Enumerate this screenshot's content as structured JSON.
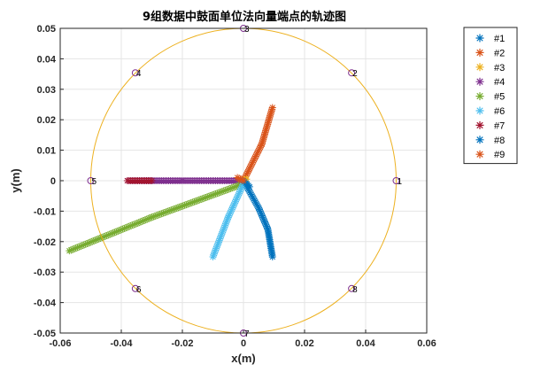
{
  "chart_data": {
    "type": "scatter",
    "title": "9组数据中鼓面单位法向量端点的轨迹图",
    "xlabel": "x(m)",
    "ylabel": "y(m)",
    "xlim": [
      -0.06,
      0.06
    ],
    "ylim": [
      -0.05,
      0.05
    ],
    "xticks": [
      "-0.06",
      "-0.04",
      "-0.02",
      "0",
      "0.02",
      "0.04",
      "0.06"
    ],
    "yticks": [
      "-0.05",
      "-0.04",
      "-0.03",
      "-0.02",
      "-0.01",
      "0",
      "0.01",
      "0.02",
      "0.03",
      "0.04",
      "0.05"
    ],
    "grid": true,
    "legend_position": "outside-right",
    "circle": {
      "center": [
        0,
        0
      ],
      "radius": 0.05,
      "color": "#EDB120"
    },
    "circle_markers": [
      {
        "label": "1",
        "x": 0.05,
        "y": 0.0
      },
      {
        "label": "2",
        "x": 0.0354,
        "y": 0.0354
      },
      {
        "label": "3",
        "x": 0.0,
        "y": 0.05
      },
      {
        "label": "4",
        "x": -0.0354,
        "y": 0.0354
      },
      {
        "label": "5",
        "x": -0.05,
        "y": 0.0
      },
      {
        "label": "6",
        "x": -0.0354,
        "y": -0.0354
      },
      {
        "label": "7",
        "x": 0.0,
        "y": -0.05
      },
      {
        "label": "8",
        "x": 0.0354,
        "y": -0.0354
      }
    ],
    "marker_circle_color": "#7E2F8E",
    "series": [
      {
        "name": "#1",
        "color": "#0072BD",
        "trajectory": [
          [
            0.0,
            0.0
          ],
          [
            0.005,
            -0.009
          ],
          [
            0.008,
            -0.016
          ],
          [
            0.0095,
            -0.025
          ]
        ]
      },
      {
        "name": "#2",
        "color": "#D95319",
        "trajectory": [
          [
            0.0,
            0.0
          ],
          [
            0.006,
            0.012
          ],
          [
            0.0095,
            0.024
          ]
        ]
      },
      {
        "name": "#3",
        "color": "#EDB120",
        "trajectory": [
          [
            -0.001,
            0.0
          ],
          [
            0.001,
            0.0005
          ]
        ]
      },
      {
        "name": "#4",
        "color": "#7E2F8E",
        "trajectory": [
          [
            0.0,
            0.0
          ],
          [
            -0.02,
            0.0
          ],
          [
            -0.038,
            0.0
          ]
        ]
      },
      {
        "name": "#5",
        "color": "#77AC30",
        "trajectory": [
          [
            0.0,
            -0.001
          ],
          [
            -0.03,
            -0.012
          ],
          [
            -0.057,
            -0.023
          ]
        ]
      },
      {
        "name": "#6",
        "color": "#4DBEEE",
        "trajectory": [
          [
            0.0,
            -0.001
          ],
          [
            -0.005,
            -0.012
          ],
          [
            -0.01,
            -0.025
          ]
        ]
      },
      {
        "name": "#7",
        "color": "#A2142F",
        "trajectory": [
          [
            -0.03,
            0.0
          ],
          [
            -0.038,
            0.0
          ]
        ]
      },
      {
        "name": "#8",
        "color": "#0072BD",
        "trajectory": [
          [
            0.0,
            0.0
          ],
          [
            0.002,
            -0.002
          ]
        ]
      },
      {
        "name": "#9",
        "color": "#D95319",
        "trajectory": [
          [
            0.0,
            0.0
          ],
          [
            -0.002,
            0.001
          ]
        ]
      }
    ]
  }
}
